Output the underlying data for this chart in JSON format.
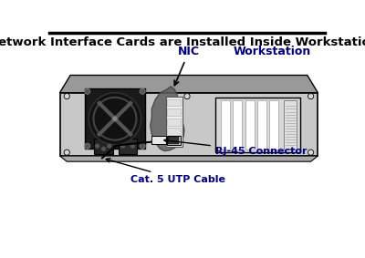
{
  "title": "Network Interface Cards are Installed Inside Workstations",
  "title_fontsize": 9.5,
  "title_fontweight": "bold",
  "bg_color": "#ffffff",
  "label_nic": "NIC",
  "label_workstation": "Workstation",
  "label_rj45": "RJ-45 Connector",
  "label_cat5": "Cat. 5 UTP Cable",
  "label_color": "#000080",
  "case_face_color": "#c8c8c8",
  "case_top_color": "#999999",
  "case_edge_color": "#000000",
  "fan_dark": "#111111",
  "fan_ring": "#444444",
  "slot_bg": "#e8e8e8",
  "slot_white": "#f8f8f8"
}
